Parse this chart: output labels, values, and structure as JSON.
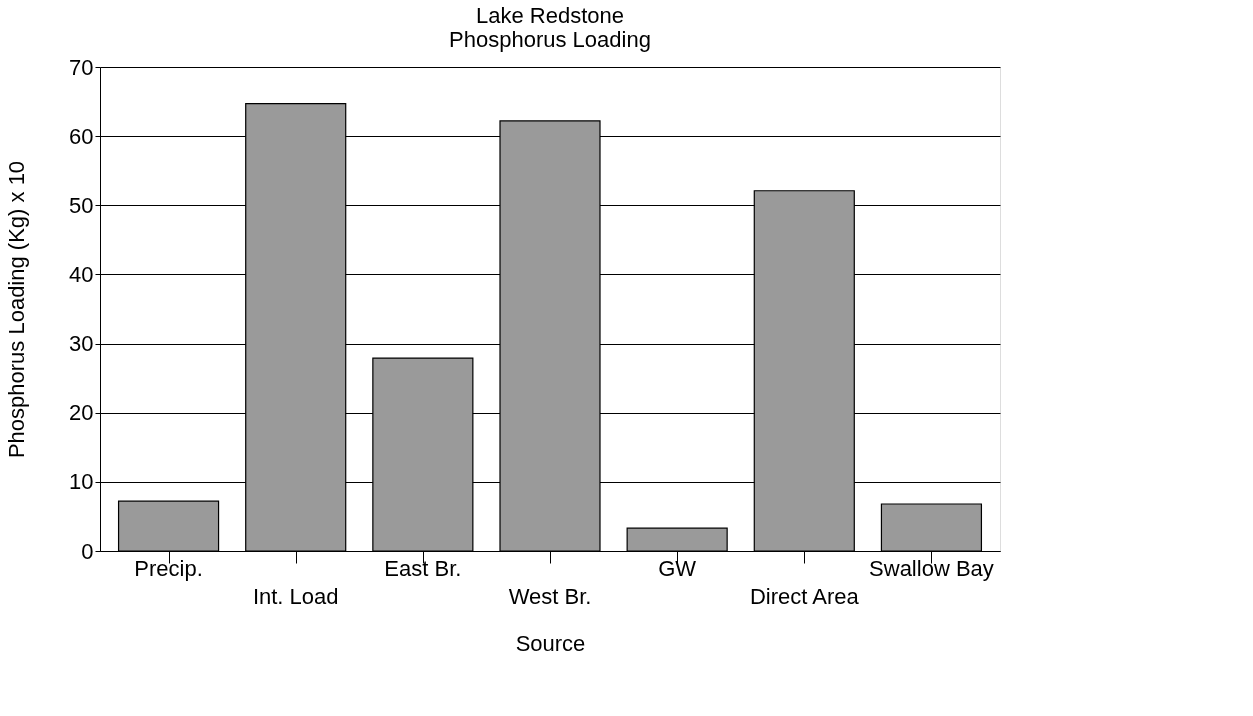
{
  "chart_data": {
    "type": "bar",
    "title": "Lake Redstone\nPhosphorus Loading",
    "xlabel": "Source",
    "ylabel": "Phosphorus Loading (Kg) x 10",
    "categories": [
      "Precip.",
      "Int. Load",
      "East Br.",
      "West Br.",
      "GW",
      "Direct Area",
      "Swallow Bay"
    ],
    "values": [
      7.2,
      64.7,
      27.9,
      62.2,
      3.3,
      52.1,
      6.8
    ],
    "color": "#9a9a9a",
    "ylim": [
      0,
      70
    ],
    "yticks": [
      0,
      10,
      20,
      30,
      40,
      50,
      60,
      70
    ],
    "grid": "y"
  }
}
